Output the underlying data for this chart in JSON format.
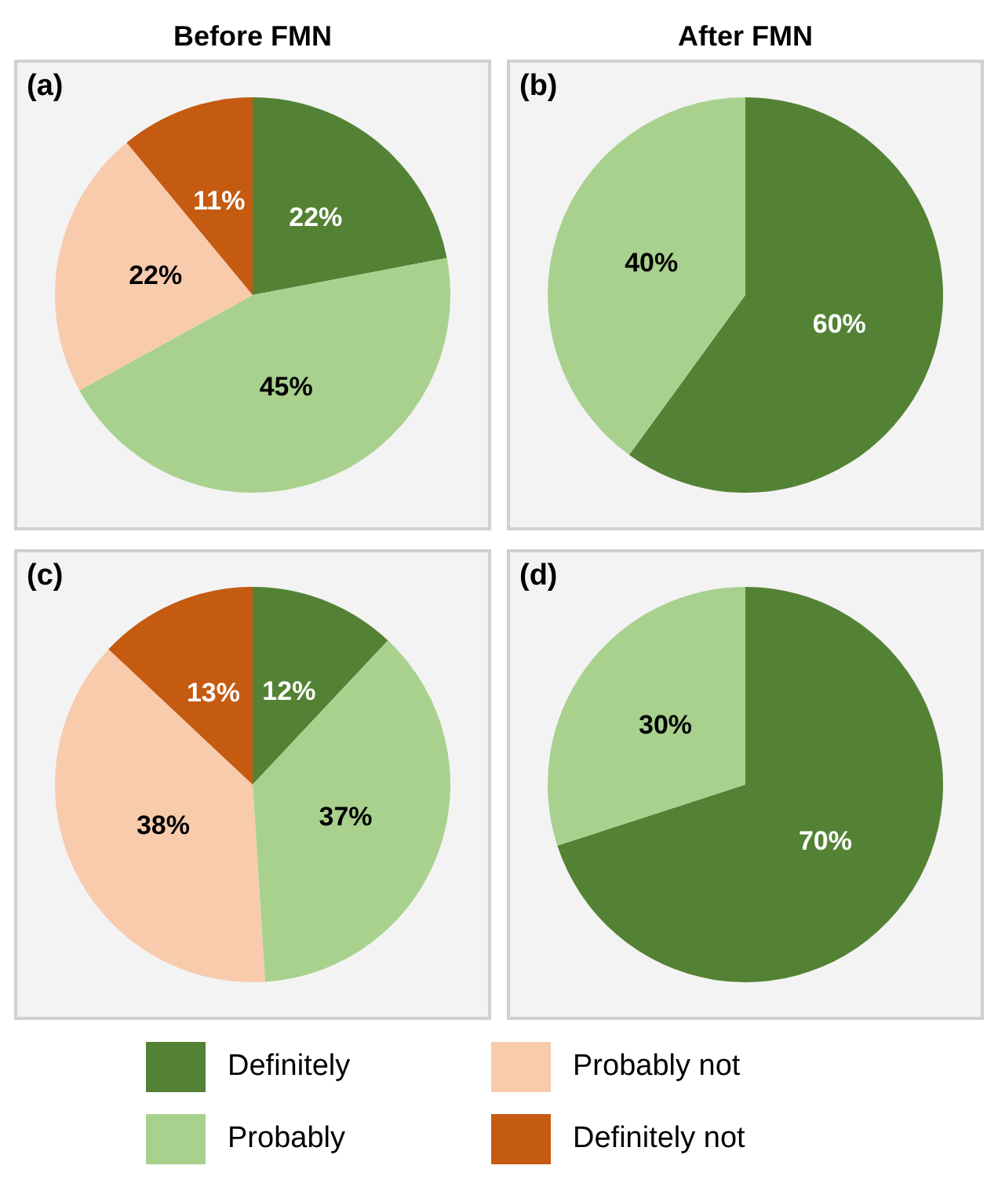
{
  "chart_data": [
    {
      "type": "pie",
      "title": "Before FMN",
      "annotations": [
        "(a)"
      ],
      "categories": [
        "Definitely",
        "Probably",
        "Probably not",
        "Definitely not"
      ],
      "values": [
        22,
        45,
        22,
        11
      ],
      "colors": [
        "#548235",
        "#a9d18e",
        "#f8cbad",
        "#c55a11"
      ],
      "value_labels": [
        "22%",
        "45%",
        "22%",
        "11%"
      ],
      "legend": "bottom"
    },
    {
      "type": "pie",
      "title": "After FMN",
      "annotations": [
        "(b)"
      ],
      "categories": [
        null,
        null
      ],
      "values": [
        60,
        40
      ],
      "colors": [
        "#548235",
        "#a9d18e"
      ],
      "value_labels": [
        "60%",
        "40%"
      ]
    },
    {
      "type": "pie",
      "annotations": [
        "(c)"
      ],
      "categories": [
        null,
        null,
        null,
        null
      ],
      "values": [
        12,
        37,
        38,
        13
      ],
      "colors": [
        "#548235",
        "#a9d18e",
        "#f8cbad",
        "#c55a11"
      ],
      "value_labels": [
        "12%",
        "37%",
        "38%",
        "13%"
      ]
    },
    {
      "type": "pie",
      "annotations": [
        "(d)"
      ],
      "categories": [
        null,
        null
      ],
      "values": [
        70,
        30
      ],
      "colors": [
        "#548235",
        "#a9d18e"
      ],
      "value_labels": [
        "70%",
        "30%"
      ]
    }
  ]
}
